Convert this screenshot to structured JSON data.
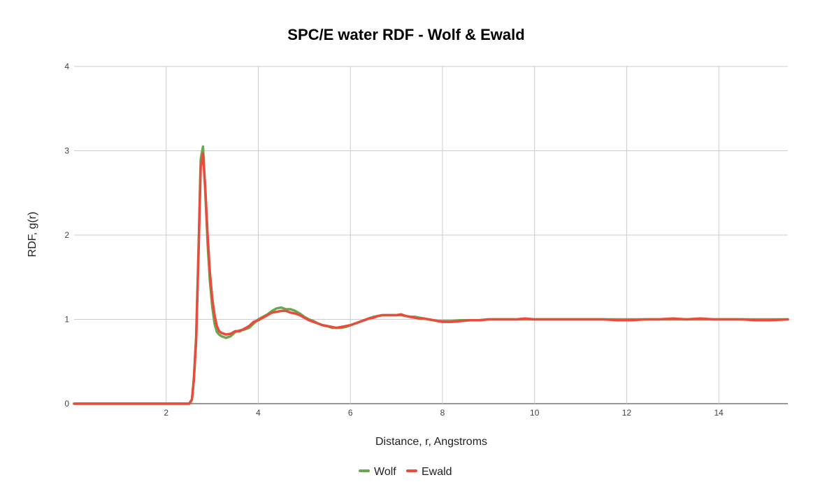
{
  "chart_data": {
    "type": "line",
    "title": "SPC/E water RDF - Wolf & Ewald",
    "xlabel": "Distance, r, Angstroms",
    "ylabel": "RDF, g(r)",
    "xlim": [
      0,
      15.5
    ],
    "ylim": [
      0,
      4
    ],
    "xticks": [
      2,
      4,
      6,
      8,
      10,
      12,
      14
    ],
    "yticks": [
      0,
      1,
      2,
      3,
      4
    ],
    "grid": true,
    "legend_position": "bottom",
    "series": [
      {
        "name": "Wolf",
        "color": "#6aa84f",
        "x": [
          0,
          2.4,
          2.5,
          2.56,
          2.6,
          2.65,
          2.7,
          2.75,
          2.8,
          2.85,
          2.9,
          2.95,
          3.0,
          3.05,
          3.1,
          3.15,
          3.2,
          3.3,
          3.4,
          3.5,
          3.6,
          3.7,
          3.8,
          3.9,
          4.0,
          4.1,
          4.2,
          4.3,
          4.4,
          4.5,
          4.6,
          4.7,
          4.8,
          4.9,
          5.0,
          5.1,
          5.2,
          5.3,
          5.4,
          5.5,
          5.6,
          5.7,
          5.8,
          5.9,
          6.0,
          6.1,
          6.2,
          6.3,
          6.4,
          6.5,
          6.6,
          6.7,
          6.8,
          6.9,
          7.0,
          7.1,
          7.2,
          7.3,
          7.4,
          7.5,
          7.6,
          7.7,
          7.8,
          7.9,
          8.0,
          8.2,
          8.4,
          8.6,
          8.8,
          9.0,
          9.2,
          9.4,
          9.6,
          9.8,
          10.0,
          10.3,
          10.6,
          10.9,
          11.2,
          11.5,
          11.8,
          12.1,
          12.4,
          12.7,
          13.0,
          13.3,
          13.6,
          13.9,
          14.2,
          14.5,
          14.8,
          15.1,
          15.5
        ],
        "y": [
          0,
          0,
          0,
          0.05,
          0.3,
          0.8,
          1.8,
          2.9,
          3.05,
          2.5,
          1.9,
          1.45,
          1.15,
          0.95,
          0.85,
          0.82,
          0.8,
          0.78,
          0.8,
          0.85,
          0.87,
          0.88,
          0.9,
          0.95,
          1.0,
          1.03,
          1.06,
          1.1,
          1.13,
          1.14,
          1.12,
          1.12,
          1.1,
          1.07,
          1.03,
          1.0,
          0.98,
          0.95,
          0.93,
          0.92,
          0.9,
          0.9,
          0.9,
          0.91,
          0.93,
          0.95,
          0.97,
          0.99,
          1.01,
          1.03,
          1.04,
          1.05,
          1.05,
          1.05,
          1.05,
          1.05,
          1.04,
          1.03,
          1.03,
          1.02,
          1.01,
          1.0,
          0.99,
          0.98,
          0.98,
          0.98,
          0.99,
          0.99,
          0.99,
          1.0,
          1.0,
          1.0,
          1.0,
          1.0,
          1.0,
          1.0,
          1.0,
          1.0,
          1.0,
          1.0,
          1.0,
          1.0,
          1.0,
          1.0,
          1.0,
          1.0,
          1.0,
          1.0,
          1.0,
          1.0,
          1.0,
          1.0,
          1.0
        ]
      },
      {
        "name": "Ewald",
        "color": "#e74c3c",
        "x": [
          0,
          2.4,
          2.5,
          2.56,
          2.6,
          2.65,
          2.7,
          2.75,
          2.8,
          2.85,
          2.9,
          2.95,
          3.0,
          3.05,
          3.1,
          3.15,
          3.2,
          3.3,
          3.4,
          3.5,
          3.6,
          3.7,
          3.8,
          3.9,
          4.0,
          4.1,
          4.2,
          4.3,
          4.4,
          4.5,
          4.6,
          4.7,
          4.8,
          4.9,
          5.0,
          5.1,
          5.2,
          5.3,
          5.4,
          5.5,
          5.6,
          5.7,
          5.8,
          5.9,
          6.0,
          6.1,
          6.2,
          6.3,
          6.4,
          6.5,
          6.6,
          6.7,
          6.8,
          6.9,
          7.0,
          7.1,
          7.2,
          7.3,
          7.4,
          7.5,
          7.6,
          7.7,
          7.8,
          7.9,
          8.0,
          8.2,
          8.4,
          8.6,
          8.8,
          9.0,
          9.2,
          9.4,
          9.6,
          9.8,
          10.0,
          10.3,
          10.6,
          10.9,
          11.2,
          11.5,
          11.8,
          12.1,
          12.4,
          12.7,
          13.0,
          13.3,
          13.6,
          13.9,
          14.2,
          14.5,
          14.8,
          15.1,
          15.5
        ],
        "y": [
          0,
          0,
          0,
          0.05,
          0.28,
          0.75,
          1.75,
          2.8,
          2.97,
          2.55,
          2.0,
          1.55,
          1.25,
          1.05,
          0.92,
          0.86,
          0.84,
          0.82,
          0.83,
          0.86,
          0.86,
          0.89,
          0.92,
          0.97,
          0.99,
          1.02,
          1.05,
          1.08,
          1.09,
          1.1,
          1.1,
          1.08,
          1.07,
          1.05,
          1.02,
          0.99,
          0.97,
          0.95,
          0.93,
          0.92,
          0.91,
          0.9,
          0.91,
          0.92,
          0.93,
          0.95,
          0.97,
          0.99,
          1.01,
          1.02,
          1.04,
          1.05,
          1.05,
          1.05,
          1.05,
          1.06,
          1.04,
          1.03,
          1.02,
          1.01,
          1.01,
          1.0,
          0.99,
          0.98,
          0.97,
          0.97,
          0.98,
          0.99,
          0.99,
          1.0,
          1.0,
          1.0,
          1.0,
          1.01,
          1.0,
          1.0,
          1.0,
          1.0,
          1.0,
          1.0,
          0.99,
          0.99,
          1.0,
          1.0,
          1.01,
          1.0,
          1.01,
          1.0,
          1.0,
          1.0,
          0.99,
          0.99,
          1.0
        ]
      }
    ]
  }
}
